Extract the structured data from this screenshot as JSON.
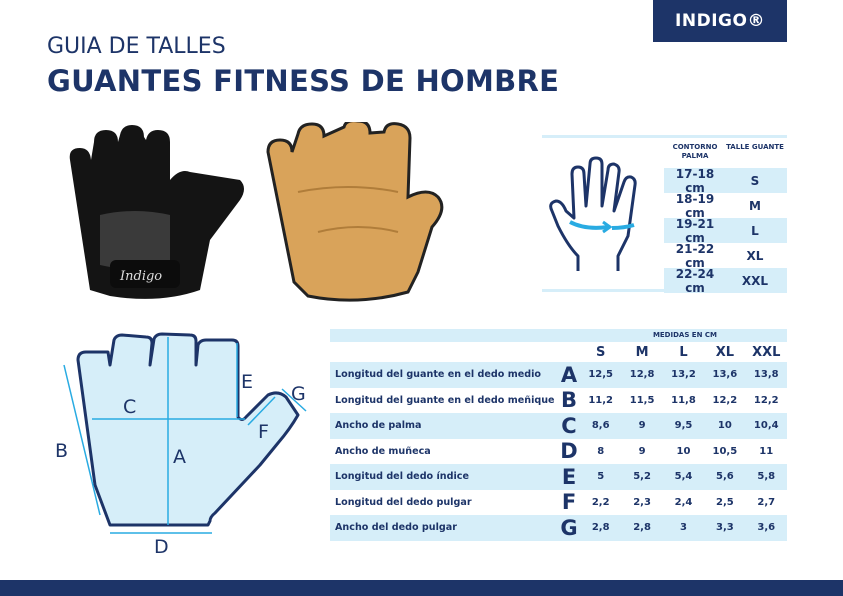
{
  "brand": {
    "logo": "INDIGO®",
    "glove_logo": "Indigo"
  },
  "title": {
    "line1": "GUIA DE TALLES",
    "line2": "GUANTES FITNESS DE HOMBRE"
  },
  "size_table": {
    "headers": [
      "CONTORNO PALMA",
      "TALLE GUANTE"
    ],
    "rows": [
      [
        "17-18 cm",
        "S"
      ],
      [
        "18-19 cm",
        "M"
      ],
      [
        "19-21 cm",
        "L"
      ],
      [
        "21-22 cm",
        "XL"
      ],
      [
        "22-24 cm",
        "XXL"
      ]
    ]
  },
  "measures": {
    "caption": "MEDIDAS EN CM",
    "sizes": [
      "S",
      "M",
      "L",
      "XL",
      "XXL"
    ],
    "rows": [
      {
        "label": "Longitud del guante en el dedo medio",
        "letter": "A",
        "values": [
          "12,5",
          "12,8",
          "13,2",
          "13,6",
          "13,8"
        ]
      },
      {
        "label": "Longitud del guante en el dedo meñique",
        "letter": "B",
        "values": [
          "11,2",
          "11,5",
          "11,8",
          "12,2",
          "12,2"
        ]
      },
      {
        "label": "Ancho de palma",
        "letter": "C",
        "values": [
          "8,6",
          "9",
          "9,5",
          "10",
          "10,4"
        ]
      },
      {
        "label": "Ancho de muñeca",
        "letter": "D",
        "values": [
          "8",
          "9",
          "10",
          "10,5",
          "11"
        ]
      },
      {
        "label": "Longitud del dedo índice",
        "letter": "E",
        "values": [
          "5",
          "5,2",
          "5,4",
          "5,6",
          "5,8"
        ]
      },
      {
        "label": "Longitud del dedo pulgar",
        "letter": "F",
        "values": [
          "2,2",
          "2,3",
          "2,4",
          "2,5",
          "2,7"
        ]
      },
      {
        "label": "Ancho del dedo pulgar",
        "letter": "G",
        "values": [
          "2,8",
          "2,8",
          "3",
          "3,3",
          "3,6"
        ]
      }
    ]
  },
  "diagram_labels": [
    "A",
    "B",
    "C",
    "D",
    "E",
    "F",
    "G"
  ],
  "colors": {
    "navy": "#1d3468",
    "light_blue": "#d6eef9",
    "cyan": "#29abe2"
  }
}
